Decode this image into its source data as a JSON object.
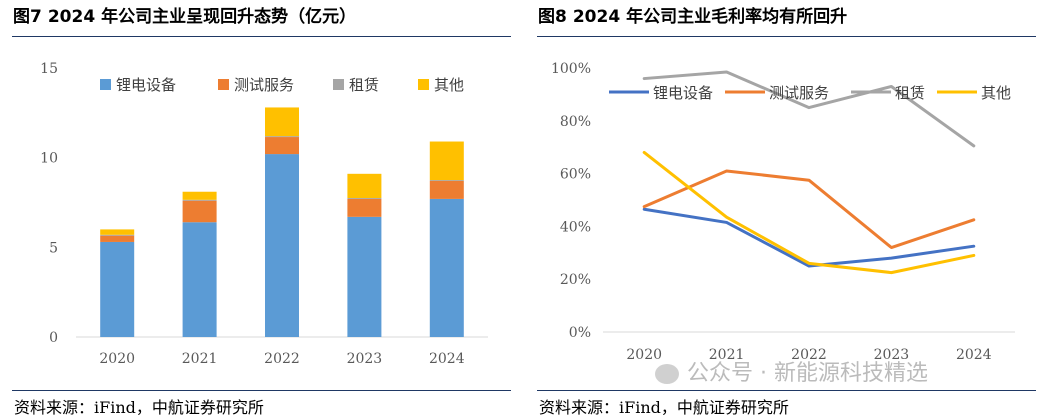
{
  "figures": [
    {
      "fig_label": "图7",
      "title": "2024 年公司主业呈现回升态势（亿元）",
      "source": "资料来源：iFind，中航证券研究所"
    },
    {
      "fig_label": "图8",
      "title": "2024 年公司主业毛利率均有所回升",
      "source": "资料来源：iFind，中航证券研究所"
    }
  ],
  "watermark": "公众号 · 新能源科技精选",
  "colors": {
    "blue": "#5b9bd5",
    "orange": "#ed7d31",
    "gray": "#a5a5a5",
    "yellow": "#ffc000",
    "rule": "#1f3864"
  },
  "chart_data": [
    {
      "type": "bar",
      "stacked": true,
      "categories": [
        "2020",
        "2021",
        "2022",
        "2023",
        "2024"
      ],
      "series": [
        {
          "name": "锂电设备",
          "color": "#5b9bd5",
          "values": [
            5.3,
            6.4,
            10.2,
            6.7,
            7.7
          ]
        },
        {
          "name": "测试服务",
          "color": "#ed7d31",
          "values": [
            0.35,
            1.2,
            0.95,
            1.0,
            1.0
          ]
        },
        {
          "name": "租赁",
          "color": "#a5a5a5",
          "values": [
            0.05,
            0.05,
            0.05,
            0.05,
            0.05
          ]
        },
        {
          "name": "其他",
          "color": "#ffc000",
          "values": [
            0.3,
            0.45,
            1.6,
            1.35,
            2.15
          ]
        }
      ],
      "ylim": [
        0,
        15
      ],
      "yticks": [
        "0",
        "5",
        "10",
        "15"
      ],
      "legend": "top",
      "grid": false
    },
    {
      "type": "line",
      "categories": [
        "2020",
        "2021",
        "2022",
        "2023",
        "2024"
      ],
      "series": [
        {
          "name": "锂电设备",
          "color": "#4472c4",
          "values": [
            46.5,
            41.5,
            25,
            28,
            32.5
          ]
        },
        {
          "name": "测试服务",
          "color": "#ed7d31",
          "values": [
            47.5,
            61,
            57.5,
            32,
            42.5
          ]
        },
        {
          "name": "租赁",
          "color": "#a5a5a5",
          "values": [
            96,
            98.5,
            85,
            93,
            70.5
          ]
        },
        {
          "name": "其他",
          "color": "#ffc000",
          "values": [
            68,
            43.5,
            26,
            22.5,
            29
          ]
        }
      ],
      "ylim": [
        0,
        100
      ],
      "yticks": [
        "0%",
        "20%",
        "40%",
        "60%",
        "80%",
        "100%"
      ],
      "legend": "top",
      "grid": false
    }
  ]
}
